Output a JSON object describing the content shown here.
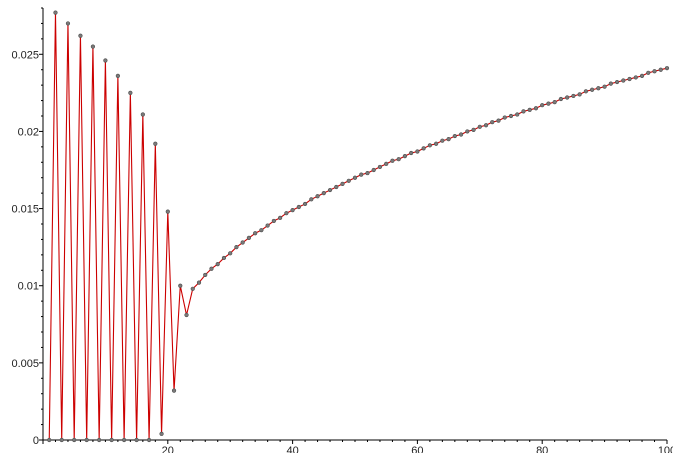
{
  "chart_data": {
    "type": "line",
    "title": "",
    "xlabel": "",
    "ylabel": "",
    "xlim": [
      0,
      100
    ],
    "ylim": [
      0,
      0.028
    ],
    "grid": false,
    "legend": "none",
    "x_ticks": [
      {
        "value": 20,
        "label": "20"
      },
      {
        "value": 40,
        "label": "40"
      },
      {
        "value": 60,
        "label": "60"
      },
      {
        "value": 80,
        "label": "80"
      },
      {
        "value": 100,
        "label": "100"
      }
    ],
    "y_ticks": [
      {
        "value": 0,
        "label": "0"
      },
      {
        "value": 0.005,
        "label": "0.005"
      },
      {
        "value": 0.01,
        "label": "0.01"
      },
      {
        "value": 0.015,
        "label": "0.015"
      },
      {
        "value": 0.02,
        "label": "0.02"
      },
      {
        "value": 0.025,
        "label": "0.025"
      }
    ],
    "series": [
      {
        "color": "#cc0000",
        "marker_color": "#7a7a7a",
        "points": [
          [
            1,
            0
          ],
          [
            2,
            0.0277
          ],
          [
            3,
            0
          ],
          [
            4,
            0.027
          ],
          [
            5,
            0
          ],
          [
            6,
            0.0262
          ],
          [
            7,
            0
          ],
          [
            8,
            0.0255
          ],
          [
            9,
            0
          ],
          [
            10,
            0.0246
          ],
          [
            11,
            0
          ],
          [
            12,
            0.0236
          ],
          [
            13,
            0
          ],
          [
            14,
            0.0225
          ],
          [
            15,
            0
          ],
          [
            16,
            0.0211
          ],
          [
            17,
            0
          ],
          [
            18,
            0.0192
          ],
          [
            19,
            0.0004
          ],
          [
            20,
            0.0148
          ],
          [
            21,
            0.0032
          ],
          [
            22,
            0.01
          ],
          [
            23,
            0.0081
          ],
          [
            24,
            0.0098
          ],
          [
            25,
            0.0102
          ],
          [
            26,
            0.0107
          ],
          [
            27,
            0.0111
          ],
          [
            28,
            0.0114
          ],
          [
            29,
            0.0118
          ],
          [
            30,
            0.0121
          ],
          [
            31,
            0.0125
          ],
          [
            32,
            0.0128
          ],
          [
            33,
            0.0131
          ],
          [
            34,
            0.0134
          ],
          [
            35,
            0.0136
          ],
          [
            36,
            0.0139
          ],
          [
            37,
            0.0142
          ],
          [
            38,
            0.0144
          ],
          [
            39,
            0.0147
          ],
          [
            40,
            0.0149
          ],
          [
            41,
            0.0151
          ],
          [
            42,
            0.0153
          ],
          [
            43,
            0.0156
          ],
          [
            44,
            0.0158
          ],
          [
            45,
            0.016
          ],
          [
            46,
            0.0162
          ],
          [
            47,
            0.0164
          ],
          [
            48,
            0.0166
          ],
          [
            49,
            0.0168
          ],
          [
            50,
            0.017
          ],
          [
            51,
            0.0172
          ],
          [
            52,
            0.0173
          ],
          [
            53,
            0.0175
          ],
          [
            54,
            0.0177
          ],
          [
            55,
            0.0179
          ],
          [
            56,
            0.0181
          ],
          [
            57,
            0.0182
          ],
          [
            58,
            0.0184
          ],
          [
            59,
            0.0186
          ],
          [
            60,
            0.0187
          ],
          [
            61,
            0.0189
          ],
          [
            62,
            0.0191
          ],
          [
            63,
            0.0192
          ],
          [
            64,
            0.0194
          ],
          [
            65,
            0.0195
          ],
          [
            66,
            0.0197
          ],
          [
            67,
            0.0198
          ],
          [
            68,
            0.02
          ],
          [
            69,
            0.0201
          ],
          [
            70,
            0.0203
          ],
          [
            71,
            0.0204
          ],
          [
            72,
            0.0206
          ],
          [
            73,
            0.0207
          ],
          [
            74,
            0.0209
          ],
          [
            75,
            0.021
          ],
          [
            76,
            0.0211
          ],
          [
            77,
            0.0213
          ],
          [
            78,
            0.0214
          ],
          [
            79,
            0.0215
          ],
          [
            80,
            0.0217
          ],
          [
            81,
            0.0218
          ],
          [
            82,
            0.0219
          ],
          [
            83,
            0.0221
          ],
          [
            84,
            0.0222
          ],
          [
            85,
            0.0223
          ],
          [
            86,
            0.0224
          ],
          [
            87,
            0.0226
          ],
          [
            88,
            0.0227
          ],
          [
            89,
            0.0228
          ],
          [
            90,
            0.0229
          ],
          [
            91,
            0.0231
          ],
          [
            92,
            0.0232
          ],
          [
            93,
            0.0233
          ],
          [
            94,
            0.0234
          ],
          [
            95,
            0.0235
          ],
          [
            96,
            0.0236
          ],
          [
            97,
            0.0238
          ],
          [
            98,
            0.0239
          ],
          [
            99,
            0.024
          ],
          [
            100,
            0.0241
          ]
        ]
      }
    ]
  }
}
